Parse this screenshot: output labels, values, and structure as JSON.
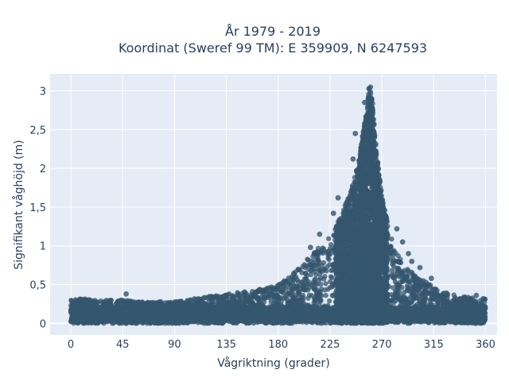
{
  "chart_data": {
    "type": "scatter",
    "title_line1": "År 1979 - 2019",
    "title_line2": "Koordinat (Sweref 99 TM): E 359909, N 6247593",
    "xlabel": "Vågriktning (grader)",
    "ylabel": "Signifikant våghöjd (m)",
    "xlim": [
      -18,
      370
    ],
    "ylim": [
      -0.15,
      3.22
    ],
    "xticks": [
      {
        "value": 0,
        "label": "0"
      },
      {
        "value": 45,
        "label": "45"
      },
      {
        "value": 90,
        "label": "90"
      },
      {
        "value": 135,
        "label": "135"
      },
      {
        "value": 180,
        "label": "180"
      },
      {
        "value": 225,
        "label": "225"
      },
      {
        "value": 270,
        "label": "270"
      },
      {
        "value": 315,
        "label": "315"
      },
      {
        "value": 360,
        "label": "360"
      }
    ],
    "yticks": [
      {
        "value": 0,
        "label": "0"
      },
      {
        "value": 0.5,
        "label": "0,5"
      },
      {
        "value": 1,
        "label": "1"
      },
      {
        "value": 1.5,
        "label": "1,5"
      },
      {
        "value": 2,
        "label": "2"
      },
      {
        "value": 2.5,
        "label": "2,5"
      },
      {
        "value": 3,
        "label": "3"
      }
    ],
    "grid": true,
    "marker_color": "#34566e",
    "plot_background": "#e5ecf6",
    "envelope": {
      "x": [
        0,
        10,
        20,
        30,
        40,
        45,
        60,
        80,
        90,
        100,
        120,
        135,
        150,
        165,
        180,
        190,
        200,
        210,
        220,
        225,
        230,
        235,
        240,
        245,
        250,
        253,
        255,
        257,
        258,
        259,
        260,
        261,
        262,
        263,
        265,
        268,
        270,
        275,
        280,
        285,
        290,
        300,
        310,
        315,
        320,
        330,
        340,
        350,
        360
      ],
      "ymax": [
        0.3,
        0.32,
        0.3,
        0.3,
        0.32,
        0.3,
        0.28,
        0.28,
        0.28,
        0.3,
        0.35,
        0.38,
        0.42,
        0.45,
        0.5,
        0.6,
        0.75,
        0.9,
        1.05,
        1.15,
        1.25,
        1.4,
        1.6,
        1.8,
        2.1,
        2.4,
        2.6,
        2.8,
        2.95,
        3.07,
        3.07,
        3.05,
        2.85,
        2.6,
        2.3,
        1.9,
        1.65,
        1.3,
        1.05,
        0.85,
        0.75,
        0.6,
        0.52,
        0.48,
        0.42,
        0.38,
        0.35,
        0.33,
        0.32
      ]
    },
    "outliers": [
      {
        "x": 255,
        "y": 2.85
      },
      {
        "x": 262,
        "y": 2.75
      },
      {
        "x": 247,
        "y": 2.45
      },
      {
        "x": 245,
        "y": 2.12
      },
      {
        "x": 232,
        "y": 1.62
      },
      {
        "x": 228,
        "y": 1.42
      },
      {
        "x": 216,
        "y": 1.15
      },
      {
        "x": 208,
        "y": 0.98
      },
      {
        "x": 283,
        "y": 1.22
      },
      {
        "x": 288,
        "y": 1.05
      },
      {
        "x": 293,
        "y": 0.9
      },
      {
        "x": 296,
        "y": 0.8
      },
      {
        "x": 303,
        "y": 0.72
      },
      {
        "x": 313,
        "y": 0.58
      },
      {
        "x": 48,
        "y": 0.38
      },
      {
        "x": 352,
        "y": 0.36
      }
    ]
  }
}
